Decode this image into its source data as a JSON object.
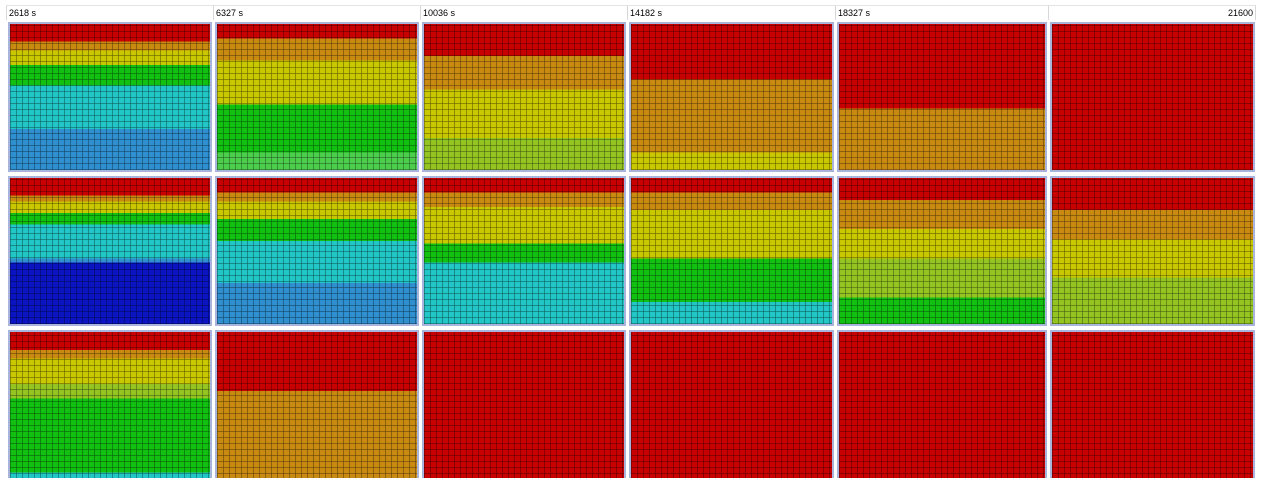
{
  "header": {
    "labels": [
      "2618 s",
      "6327 s",
      "10036 s",
      "14182 s",
      "18327 s",
      "21600"
    ]
  }
}
